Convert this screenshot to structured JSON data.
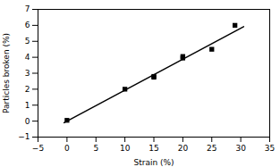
{
  "chart_data": {
    "type": "scatter",
    "xlabel": "Strain (%)",
    "ylabel": "Particles broken (%)",
    "series": [
      {
        "type": "line",
        "x": [
          -0.5,
          30.5
        ],
        "values": [
          -0.097,
          5.917
        ],
        "color": "black",
        "line_style": "solid"
      },
      {
        "type": "scatter",
        "x": [
          0,
          10,
          15,
          15,
          20,
          20,
          25,
          29
        ],
        "values": [
          0.05,
          2.0,
          2.75,
          2.8,
          3.95,
          4.05,
          4.5,
          6.0
        ],
        "color": "black",
        "marker": "square"
      }
    ],
    "xlim": [
      -5,
      35
    ],
    "xticks": [
      -5,
      0,
      5,
      10,
      15,
      20,
      25,
      30,
      35
    ],
    "ylim": [
      -1,
      7
    ],
    "yticks": [
      -1,
      0,
      1,
      2,
      3,
      4,
      5,
      6,
      7
    ],
    "grid": false
  }
}
